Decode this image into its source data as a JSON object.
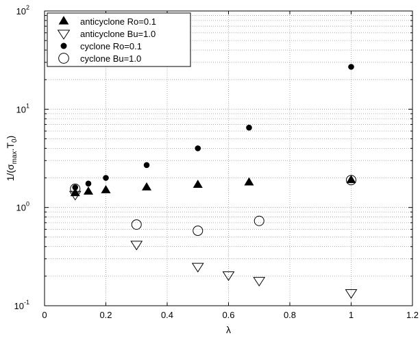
{
  "chart_data": {
    "type": "scatter",
    "title": "",
    "xlabel": "λ",
    "ylabel": "1/(σ",
    "ylabel_sub_max": "max",
    "ylabel_mid": ".T",
    "ylabel_sub_0": "0",
    "ylabel_end": ")",
    "xlim": [
      0,
      1.2
    ],
    "ylim": [
      0.1,
      100
    ],
    "yscale": "log",
    "grid": true,
    "legend_position": "top-left",
    "x_ticks": [
      {
        "value": 0,
        "label": "0"
      },
      {
        "value": 0.2,
        "label": "0.2"
      },
      {
        "value": 0.4,
        "label": "0.4"
      },
      {
        "value": 0.6,
        "label": "0.6"
      },
      {
        "value": 0.8,
        "label": "0.8"
      },
      {
        "value": 1,
        "label": "1"
      },
      {
        "value": 1.2,
        "label": "1.2"
      }
    ],
    "y_ticks": [
      {
        "value": 0.1,
        "base": "10",
        "exp": "-1"
      },
      {
        "value": 1,
        "base": "10",
        "exp": "0"
      },
      {
        "value": 10,
        "base": "10",
        "exp": "1"
      },
      {
        "value": 100,
        "base": "10",
        "exp": "2"
      }
    ],
    "series": [
      {
        "name": "anticyclone Ro=0.1",
        "marker": "triangle-up-filled",
        "color": "#000000",
        "points": [
          {
            "x": 0.1,
            "y": 1.4
          },
          {
            "x": 0.143,
            "y": 1.45
          },
          {
            "x": 0.2,
            "y": 1.5
          },
          {
            "x": 0.333,
            "y": 1.6
          },
          {
            "x": 0.5,
            "y": 1.7
          },
          {
            "x": 0.667,
            "y": 1.8
          },
          {
            "x": 1.0,
            "y": 1.9
          }
        ]
      },
      {
        "name": "anticyclone Bu=1.0",
        "marker": "triangle-down-open",
        "color": "#000000",
        "points": [
          {
            "x": 0.1,
            "y": 1.35
          },
          {
            "x": 0.3,
            "y": 0.42
          },
          {
            "x": 0.5,
            "y": 0.25
          },
          {
            "x": 0.6,
            "y": 0.205
          },
          {
            "x": 0.7,
            "y": 0.18
          },
          {
            "x": 1.0,
            "y": 0.135
          }
        ]
      },
      {
        "name": "cyclone Ro=0.1",
        "marker": "circle-filled",
        "color": "#000000",
        "points": [
          {
            "x": 0.1,
            "y": 1.6
          },
          {
            "x": 0.143,
            "y": 1.75
          },
          {
            "x": 0.2,
            "y": 2.0
          },
          {
            "x": 0.333,
            "y": 2.7
          },
          {
            "x": 0.5,
            "y": 4.0
          },
          {
            "x": 0.667,
            "y": 6.5
          },
          {
            "x": 1.0,
            "y": 27
          }
        ]
      },
      {
        "name": "cyclone Bu=1.0",
        "marker": "circle-open",
        "color": "#000000",
        "points": [
          {
            "x": 0.1,
            "y": 1.55
          },
          {
            "x": 0.3,
            "y": 0.67
          },
          {
            "x": 0.5,
            "y": 0.58
          },
          {
            "x": 0.7,
            "y": 0.73
          },
          {
            "x": 1.0,
            "y": 1.9
          }
        ]
      }
    ]
  }
}
